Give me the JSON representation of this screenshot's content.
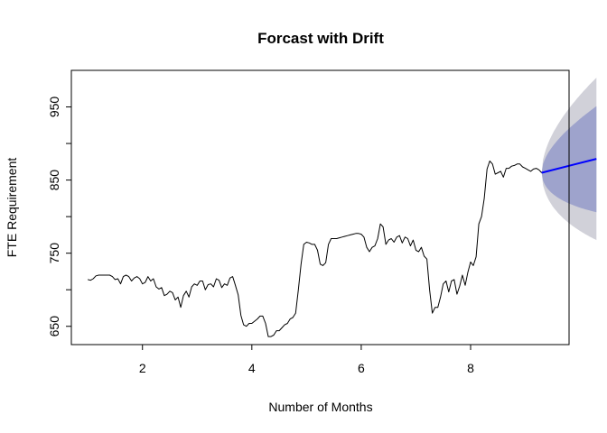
{
  "chart_data": {
    "type": "line",
    "title": "Forcast with Drift",
    "xlabel": "Number of Months",
    "ylabel": "FTE Requirement",
    "xlim": [
      0.7,
      9.8
    ],
    "ylim": [
      625,
      1000
    ],
    "xticks": [
      2,
      4,
      6,
      8
    ],
    "yticks": [
      650,
      750,
      850,
      950
    ],
    "ytick_minor": [
      700,
      800,
      900
    ],
    "grid": false,
    "legend": "none",
    "series": [
      {
        "role": "observed",
        "color": "#000000",
        "points": [
          [
            1.0,
            714
          ],
          [
            1.05,
            713
          ],
          [
            1.1,
            715
          ],
          [
            1.15,
            719
          ],
          [
            1.2,
            720
          ],
          [
            1.3,
            720
          ],
          [
            1.4,
            720
          ],
          [
            1.45,
            718
          ],
          [
            1.5,
            714
          ],
          [
            1.55,
            715
          ],
          [
            1.6,
            708
          ],
          [
            1.65,
            718
          ],
          [
            1.7,
            720
          ],
          [
            1.75,
            718
          ],
          [
            1.8,
            712
          ],
          [
            1.85,
            716
          ],
          [
            1.9,
            718
          ],
          [
            1.95,
            715
          ],
          [
            2.0,
            708
          ],
          [
            2.05,
            710
          ],
          [
            2.1,
            718
          ],
          [
            2.15,
            712
          ],
          [
            2.2,
            715
          ],
          [
            2.25,
            704
          ],
          [
            2.3,
            701
          ],
          [
            2.35,
            703
          ],
          [
            2.4,
            692
          ],
          [
            2.45,
            694
          ],
          [
            2.5,
            698
          ],
          [
            2.55,
            696
          ],
          [
            2.6,
            686
          ],
          [
            2.65,
            690
          ],
          [
            2.7,
            676
          ],
          [
            2.75,
            692
          ],
          [
            2.8,
            698
          ],
          [
            2.85,
            690
          ],
          [
            2.9,
            704
          ],
          [
            2.95,
            708
          ],
          [
            3.0,
            706
          ],
          [
            3.05,
            712
          ],
          [
            3.1,
            712
          ],
          [
            3.15,
            700
          ],
          [
            3.2,
            707
          ],
          [
            3.25,
            708
          ],
          [
            3.3,
            704
          ],
          [
            3.35,
            715
          ],
          [
            3.4,
            713
          ],
          [
            3.45,
            703
          ],
          [
            3.5,
            708
          ],
          [
            3.55,
            706
          ],
          [
            3.6,
            716
          ],
          [
            3.65,
            718
          ],
          [
            3.7,
            706
          ],
          [
            3.75,
            693
          ],
          [
            3.8,
            665
          ],
          [
            3.85,
            652
          ],
          [
            3.9,
            650
          ],
          [
            3.95,
            654
          ],
          [
            4.0,
            654
          ],
          [
            4.05,
            657
          ],
          [
            4.1,
            660
          ],
          [
            4.15,
            664
          ],
          [
            4.2,
            664
          ],
          [
            4.25,
            654
          ],
          [
            4.3,
            636
          ],
          [
            4.35,
            636
          ],
          [
            4.4,
            638
          ],
          [
            4.45,
            644
          ],
          [
            4.5,
            644
          ],
          [
            4.55,
            648
          ],
          [
            4.6,
            652
          ],
          [
            4.65,
            654
          ],
          [
            4.7,
            660
          ],
          [
            4.75,
            662
          ],
          [
            4.8,
            668
          ],
          [
            4.85,
            700
          ],
          [
            4.9,
            735
          ],
          [
            4.95,
            762
          ],
          [
            5.0,
            765
          ],
          [
            5.05,
            764
          ],
          [
            5.1,
            762
          ],
          [
            5.15,
            762
          ],
          [
            5.2,
            754
          ],
          [
            5.25,
            735
          ],
          [
            5.3,
            733
          ],
          [
            5.35,
            737
          ],
          [
            5.4,
            762
          ],
          [
            5.45,
            770
          ],
          [
            5.5,
            770
          ],
          [
            5.55,
            770
          ],
          [
            5.6,
            771
          ],
          [
            5.65,
            772
          ],
          [
            5.7,
            773
          ],
          [
            5.75,
            774
          ],
          [
            5.8,
            775
          ],
          [
            5.85,
            776
          ],
          [
            5.9,
            777
          ],
          [
            5.95,
            777
          ],
          [
            6.0,
            776
          ],
          [
            6.05,
            772
          ],
          [
            6.1,
            758
          ],
          [
            6.15,
            752
          ],
          [
            6.2,
            758
          ],
          [
            6.25,
            760
          ],
          [
            6.3,
            770
          ],
          [
            6.35,
            790
          ],
          [
            6.4,
            786
          ],
          [
            6.45,
            762
          ],
          [
            6.5,
            768
          ],
          [
            6.55,
            770
          ],
          [
            6.6,
            765
          ],
          [
            6.65,
            772
          ],
          [
            6.7,
            774
          ],
          [
            6.75,
            764
          ],
          [
            6.8,
            772
          ],
          [
            6.85,
            770
          ],
          [
            6.9,
            760
          ],
          [
            6.95,
            768
          ],
          [
            7.0,
            754
          ],
          [
            7.05,
            752
          ],
          [
            7.1,
            758
          ],
          [
            7.15,
            746
          ],
          [
            7.2,
            742
          ],
          [
            7.25,
            700
          ],
          [
            7.3,
            668
          ],
          [
            7.35,
            676
          ],
          [
            7.4,
            676
          ],
          [
            7.45,
            690
          ],
          [
            7.5,
            708
          ],
          [
            7.55,
            712
          ],
          [
            7.6,
            697
          ],
          [
            7.65,
            712
          ],
          [
            7.7,
            714
          ],
          [
            7.75,
            694
          ],
          [
            7.8,
            705
          ],
          [
            7.85,
            720
          ],
          [
            7.9,
            706
          ],
          [
            7.95,
            724
          ],
          [
            8.0,
            738
          ],
          [
            8.05,
            733
          ],
          [
            8.1,
            745
          ],
          [
            8.15,
            790
          ],
          [
            8.2,
            800
          ],
          [
            8.25,
            825
          ],
          [
            8.3,
            865
          ],
          [
            8.35,
            876
          ],
          [
            8.4,
            872
          ],
          [
            8.45,
            858
          ],
          [
            8.5,
            860
          ],
          [
            8.55,
            862
          ],
          [
            8.6,
            854
          ],
          [
            8.65,
            866
          ],
          [
            8.7,
            866
          ],
          [
            8.75,
            869
          ],
          [
            8.8,
            870
          ],
          [
            8.85,
            872
          ],
          [
            8.9,
            872
          ],
          [
            8.95,
            868
          ],
          [
            9.0,
            866
          ],
          [
            9.05,
            864
          ],
          [
            9.1,
            862
          ],
          [
            9.15,
            865
          ],
          [
            9.2,
            866
          ],
          [
            9.25,
            864
          ],
          [
            9.3,
            860
          ]
        ]
      },
      {
        "role": "forecast",
        "color": "#0000ff",
        "points": [
          [
            9.3,
            860
          ],
          [
            10.3,
            879
          ]
        ]
      }
    ],
    "intervals": [
      {
        "level": "95",
        "color": "#d1d1d9",
        "x": [
          9.3,
          10.3
        ],
        "lower": [
          860,
          768
        ],
        "upper": [
          860,
          990
        ]
      },
      {
        "level": "80",
        "color": "#9ea3cc",
        "x": [
          9.3,
          10.3
        ],
        "lower": [
          860,
          806
        ],
        "upper": [
          860,
          951
        ]
      }
    ]
  }
}
